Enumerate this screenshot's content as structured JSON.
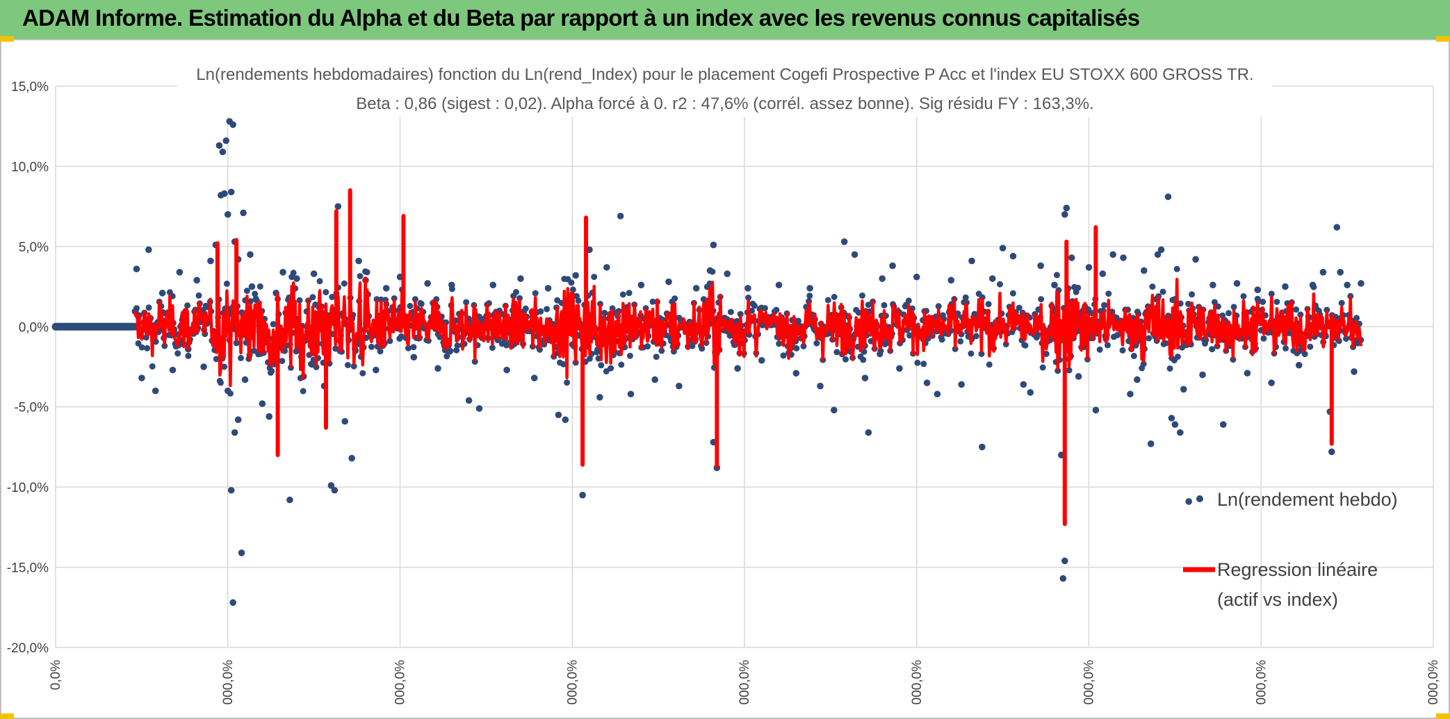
{
  "header": {
    "title": "ADAM Informe. Estimation du Alpha et du Beta par rapport à un index avec les revenus connus capitalisés"
  },
  "colors": {
    "banner": "#7dc87d",
    "points": "#2e4a7a",
    "regression": "#ff0000",
    "grid": "#d9d9d9",
    "corner": "#f2c200"
  },
  "chart_data": {
    "type": "scatter",
    "title_lines": [
      "Ln(rendements hebdomadaires) fonction du Ln(rend_Index) pour le placement Cogefi Prospective P Acc et l'index EU STOXX 600 GROSS TR.",
      "Beta : 0,86 (sigest : 0,02). Alpha forcé à 0. r2 : 47,6% (corrél. assez bonne). Sig résidu FY : 163,3%."
    ],
    "y_ticks": [
      "15,0%",
      "10,0%",
      "5,0%",
      "0,0%",
      "-5,0%",
      "-10,0%",
      "-15,0%",
      "-20,0%"
    ],
    "x_ticks": [
      "0,0%",
      "000,0%",
      "000,0%",
      "000,0%",
      "000,0%",
      "000,0%",
      "000,0%",
      "000,0%",
      "000,0%"
    ],
    "ylim": [
      -20,
      15
    ],
    "grid": true,
    "legend_position": "right",
    "series": [
      {
        "name": "Ln(rendement hebdo)",
        "kind": "points",
        "values": [
          [
            0.47,
            3.6
          ],
          [
            0.5,
            -3.2
          ],
          [
            0.54,
            4.8
          ],
          [
            0.58,
            -4.0
          ],
          [
            0.62,
            2.1
          ],
          [
            0.68,
            -2.7
          ],
          [
            0.72,
            3.4
          ],
          [
            0.77,
            -1.4
          ],
          [
            0.82,
            2.9
          ],
          [
            0.86,
            -2.5
          ],
          [
            0.9,
            4.1
          ],
          [
            0.93,
            5.1
          ],
          [
            0.95,
            11.3
          ],
          [
            0.97,
            10.9
          ],
          [
            0.99,
            11.6
          ],
          [
            1.01,
            12.8
          ],
          [
            1.03,
            12.6
          ],
          [
            0.98,
            8.3
          ],
          [
            1.02,
            8.4
          ],
          [
            1.0,
            7.0
          ],
          [
            0.96,
            8.2
          ],
          [
            1.04,
            5.3
          ],
          [
            1.06,
            4.2
          ],
          [
            1.09,
            7.1
          ],
          [
            1.13,
            4.5
          ],
          [
            1.0,
            -4.0
          ],
          [
            1.02,
            -10.2
          ],
          [
            1.04,
            -6.6
          ],
          [
            1.06,
            -5.8
          ],
          [
            1.08,
            -14.1
          ],
          [
            1.03,
            -17.2
          ],
          [
            1.1,
            -3.3
          ],
          [
            1.14,
            2.5
          ],
          [
            1.2,
            -4.8
          ],
          [
            1.24,
            -5.6
          ],
          [
            1.28,
            2.1
          ],
          [
            1.32,
            3.4
          ],
          [
            1.36,
            -10.8
          ],
          [
            1.4,
            3.0
          ],
          [
            1.44,
            -3.1
          ],
          [
            1.5,
            3.3
          ],
          [
            1.56,
            -3.7
          ],
          [
            1.6,
            -9.9
          ],
          [
            1.62,
            -10.2
          ],
          [
            1.64,
            7.5
          ],
          [
            1.68,
            -5.9
          ],
          [
            1.72,
            -8.2
          ],
          [
            1.76,
            4.1
          ],
          [
            1.8,
            2.9
          ],
          [
            1.86,
            -2.7
          ],
          [
            1.92,
            2.4
          ],
          [
            2.0,
            3.1
          ],
          [
            2.08,
            -1.9
          ],
          [
            2.16,
            2.7
          ],
          [
            2.22,
            -2.6
          ],
          [
            2.3,
            2.6
          ],
          [
            2.4,
            -4.6
          ],
          [
            2.46,
            -5.1
          ],
          [
            2.54,
            2.6
          ],
          [
            2.62,
            -2.7
          ],
          [
            2.7,
            3.0
          ],
          [
            2.78,
            -3.2
          ],
          [
            2.86,
            2.4
          ],
          [
            2.92,
            -5.5
          ],
          [
            2.96,
            -5.8
          ],
          [
            3.02,
            3.2
          ],
          [
            3.06,
            -10.5
          ],
          [
            3.1,
            4.8
          ],
          [
            3.16,
            -4.4
          ],
          [
            3.2,
            3.7
          ],
          [
            3.28,
            6.9
          ],
          [
            3.34,
            -4.2
          ],
          [
            3.4,
            2.6
          ],
          [
            3.48,
            -3.3
          ],
          [
            3.56,
            2.8
          ],
          [
            3.62,
            -3.7
          ],
          [
            3.72,
            2.4
          ],
          [
            3.8,
            3.5
          ],
          [
            3.82,
            5.1
          ],
          [
            3.84,
            -8.8
          ],
          [
            3.82,
            -7.2
          ],
          [
            3.9,
            3.3
          ],
          [
            3.96,
            -2.6
          ],
          [
            4.02,
            2.4
          ],
          [
            4.1,
            -2.1
          ],
          [
            4.2,
            2.6
          ],
          [
            4.3,
            -2.9
          ],
          [
            4.38,
            2.4
          ],
          [
            4.44,
            -3.7
          ],
          [
            4.52,
            -5.2
          ],
          [
            4.58,
            5.3
          ],
          [
            4.64,
            4.5
          ],
          [
            4.7,
            -3.2
          ],
          [
            4.72,
            -6.6
          ],
          [
            4.8,
            3.0
          ],
          [
            4.86,
            3.8
          ],
          [
            4.9,
            -2.6
          ],
          [
            5.0,
            3.1
          ],
          [
            5.06,
            -3.5
          ],
          [
            5.12,
            -4.2
          ],
          [
            5.2,
            2.9
          ],
          [
            5.26,
            -3.6
          ],
          [
            5.32,
            4.1
          ],
          [
            5.38,
            -7.5
          ],
          [
            5.44,
            3.0
          ],
          [
            5.5,
            4.9
          ],
          [
            5.56,
            4.4
          ],
          [
            5.62,
            -3.6
          ],
          [
            5.66,
            -4.1
          ],
          [
            5.72,
            3.8
          ],
          [
            5.8,
            2.6
          ],
          [
            5.84,
            -8.0
          ],
          [
            5.86,
            -14.6
          ],
          [
            5.85,
            -15.7
          ],
          [
            5.87,
            7.4
          ],
          [
            5.86,
            7.0
          ],
          [
            5.9,
            4.3
          ],
          [
            5.94,
            -3.1
          ],
          [
            6.0,
            3.7
          ],
          [
            6.04,
            -5.2
          ],
          [
            6.08,
            3.3
          ],
          [
            6.14,
            4.5
          ],
          [
            6.2,
            4.3
          ],
          [
            6.24,
            -4.2
          ],
          [
            6.28,
            -3.3
          ],
          [
            6.32,
            3.5
          ],
          [
            6.36,
            -7.3
          ],
          [
            6.4,
            4.5
          ],
          [
            6.42,
            4.8
          ],
          [
            6.46,
            8.1
          ],
          [
            6.48,
            -5.7
          ],
          [
            6.5,
            -6.1
          ],
          [
            6.53,
            -6.6
          ],
          [
            6.55,
            -3.9
          ],
          [
            6.58,
            -10.9
          ],
          [
            6.62,
            4.2
          ],
          [
            6.66,
            -3.0
          ],
          [
            6.72,
            2.6
          ],
          [
            6.78,
            -6.1
          ],
          [
            6.86,
            2.7
          ],
          [
            6.92,
            -2.9
          ],
          [
            6.98,
            2.3
          ],
          [
            7.06,
            -3.5
          ],
          [
            7.14,
            2.5
          ],
          [
            7.22,
            -2.4
          ],
          [
            7.3,
            2.6
          ],
          [
            7.36,
            3.4
          ],
          [
            7.4,
            -5.3
          ],
          [
            7.41,
            -7.8
          ],
          [
            7.44,
            6.2
          ],
          [
            7.46,
            3.4
          ],
          [
            7.5,
            2.6
          ],
          [
            7.54,
            -2.8
          ],
          [
            7.58,
            2.7
          ]
        ]
      },
      {
        "name": "Regression linéaire (actif vs index)",
        "kind": "line"
      }
    ]
  },
  "legend": {
    "points_label": "Ln(rendement hebdo)",
    "line_label_1": "Regression linéaire",
    "line_label_2": "(actif vs index)"
  }
}
